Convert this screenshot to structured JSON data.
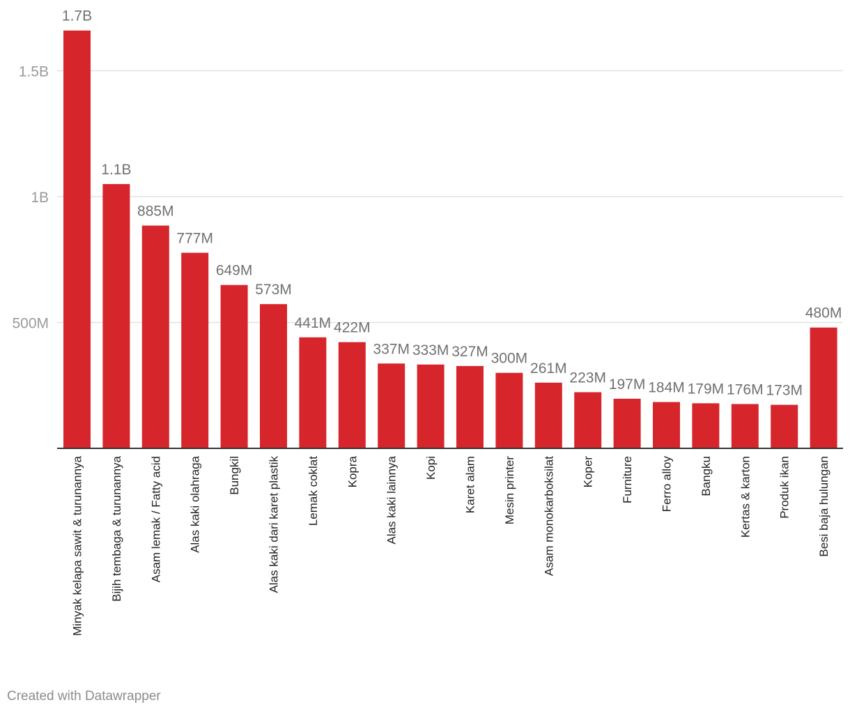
{
  "chart_data": {
    "type": "bar",
    "categories": [
      "Minyak kelapa sawit & turunannya",
      "Bijih tembaga & turunannya",
      "Asam lemak / Fatty acid",
      "Alas kaki olahraga",
      "Bungkil",
      "Alas kaki dari karet plastik",
      "Lemak coklat",
      "Kopra",
      "Alas kaki lainnya",
      "Kopi",
      "Karet alam",
      "Mesin printer",
      "Asam monokarboksilat",
      "Koper",
      "Furniture",
      "Ferro alloy",
      "Bangku",
      "Kertas & karton",
      "Produk ikan",
      "Besi baja hulungan"
    ],
    "values": [
      1660000000,
      1050000000,
      885000000,
      777000000,
      649000000,
      573000000,
      441000000,
      422000000,
      337000000,
      333000000,
      327000000,
      300000000,
      261000000,
      223000000,
      197000000,
      184000000,
      179000000,
      176000000,
      173000000,
      480000000
    ],
    "value_labels": [
      "1.7B",
      "1.1B",
      "885M",
      "777M",
      "649M",
      "573M",
      "441M",
      "422M",
      "337M",
      "333M",
      "327M",
      "300M",
      "261M",
      "223M",
      "197M",
      "184M",
      "179M",
      "176M",
      "173M",
      "480M"
    ],
    "y_ticks": [
      {
        "value": 500000000,
        "label": "500M"
      },
      {
        "value": 1000000000,
        "label": "1B"
      },
      {
        "value": 1500000000,
        "label": "1.5B"
      }
    ],
    "ylim": [
      0,
      1700000000
    ],
    "grid": true,
    "bar_color": "#d7262b"
  },
  "footer": {
    "credit": "Created with Datawrapper"
  }
}
